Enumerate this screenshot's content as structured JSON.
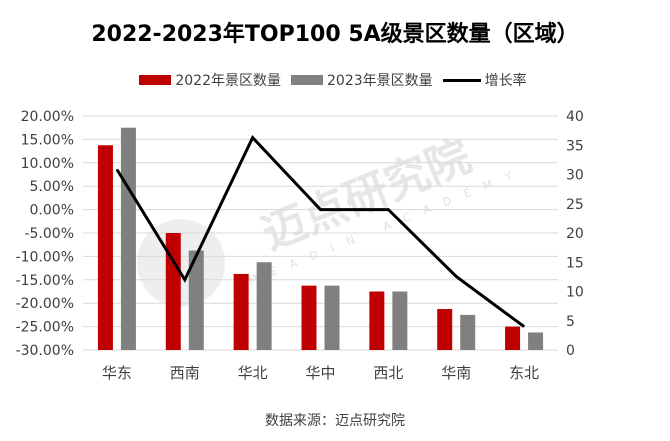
{
  "chart_data": {
    "type": "bar",
    "title": "2022-2023年TOP100 5A级景区数量（区域）",
    "categories": [
      "华东",
      "西南",
      "华北",
      "华中",
      "西北",
      "华南",
      "东北"
    ],
    "series": [
      {
        "name": "2022年景区数量",
        "type": "bar",
        "axis": "right",
        "color": "#C00000",
        "values": [
          35,
          20,
          13,
          11,
          10,
          7,
          4
        ]
      },
      {
        "name": "2023年景区数量",
        "type": "bar",
        "axis": "right",
        "color": "#808080",
        "values": [
          38,
          17,
          15,
          11,
          10,
          6,
          3
        ]
      },
      {
        "name": "增长率",
        "type": "line",
        "axis": "left",
        "color": "#000000",
        "values": [
          8.57,
          -15.0,
          15.38,
          0.0,
          0.0,
          -14.29,
          -25.0
        ]
      }
    ],
    "left_axis": {
      "ylim": [
        -30,
        20
      ],
      "ticks": [
        "20.00%",
        "15.00%",
        "10.00%",
        "5.00%",
        "0.00%",
        "-5.00%",
        "-10.00%",
        "-15.00%",
        "-20.00%",
        "-25.00%",
        "-30.00%"
      ]
    },
    "right_axis": {
      "ylim": [
        0,
        40
      ],
      "ticks": [
        "40",
        "35",
        "30",
        "25",
        "20",
        "15",
        "10",
        "5",
        "0"
      ]
    },
    "grid": true,
    "legend_position": "top"
  },
  "source": "数据来源：迈点研究院",
  "watermark": {
    "cn": "迈点研究院",
    "en": "MEADIN ACADEMY"
  }
}
